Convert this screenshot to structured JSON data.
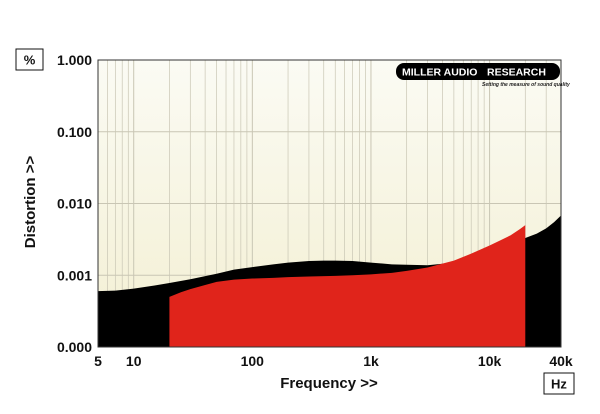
{
  "chart_data": {
    "type": "area",
    "xlabel": "Frequency >>",
    "ylabel": "Distortion >>",
    "y_unit": "%",
    "x_unit": "Hz",
    "x_scale": "log",
    "y_scale": "log",
    "xlim": [
      5,
      40000
    ],
    "ylim": [
      0.0001,
      1.0
    ],
    "grid": true,
    "x_tick_labels": [
      {
        "value": 5,
        "label": "5"
      },
      {
        "value": 10,
        "label": "10"
      },
      {
        "value": 100,
        "label": "100"
      },
      {
        "value": 1000,
        "label": "1k"
      },
      {
        "value": 10000,
        "label": "10k"
      },
      {
        "value": 40000,
        "label": "40k"
      }
    ],
    "y_tick_labels": [
      {
        "value": 1.0,
        "label": "1.000"
      },
      {
        "value": 0.1,
        "label": "0.100"
      },
      {
        "value": 0.01,
        "label": "0.010"
      },
      {
        "value": 0.001,
        "label": "0.001"
      },
      {
        "value": 0.0001,
        "label": "0.000"
      }
    ],
    "series": [
      {
        "color": "#000000",
        "x": [
          5,
          7,
          10,
          15,
          20,
          30,
          50,
          70,
          100,
          150,
          200,
          300,
          400,
          500,
          700,
          1000,
          1500,
          2000,
          3000,
          5000,
          7000,
          10000,
          15000,
          20000,
          25000,
          30000,
          35000,
          40000
        ],
        "y": [
          0.0006,
          0.00061,
          0.00065,
          0.00072,
          0.00078,
          0.00088,
          0.00105,
          0.0012,
          0.0013,
          0.00142,
          0.0015,
          0.00158,
          0.0016,
          0.0016,
          0.00158,
          0.0015,
          0.00142,
          0.0014,
          0.00138,
          0.0015,
          0.0017,
          0.0021,
          0.0027,
          0.0033,
          0.0038,
          0.0045,
          0.0055,
          0.0068
        ]
      },
      {
        "color": "#e0241b",
        "x": [
          20,
          25,
          30,
          40,
          50,
          70,
          100,
          150,
          200,
          300,
          500,
          700,
          1000,
          1500,
          2000,
          3000,
          5000,
          7000,
          10000,
          12000,
          15000,
          18000,
          20000
        ],
        "y": [
          0.0005,
          0.00058,
          0.00064,
          0.00073,
          0.00081,
          0.00087,
          0.0009,
          0.00092,
          0.00094,
          0.00096,
          0.00098,
          0.001,
          0.00103,
          0.00108,
          0.00115,
          0.00128,
          0.0016,
          0.002,
          0.0026,
          0.003,
          0.0036,
          0.0044,
          0.005
        ]
      }
    ]
  },
  "logo": {
    "text_left": "MILLER AUDIO",
    "text_right": "RESEARCH",
    "tagline": "Setting the measure of sound quality"
  },
  "colors": {
    "plot_bg_top": "#fbfbf4",
    "plot_bg_bottom": "#f5f1d6",
    "grid": "#c9c6b4",
    "black_series": "#000000",
    "red_series": "#e0241b"
  }
}
